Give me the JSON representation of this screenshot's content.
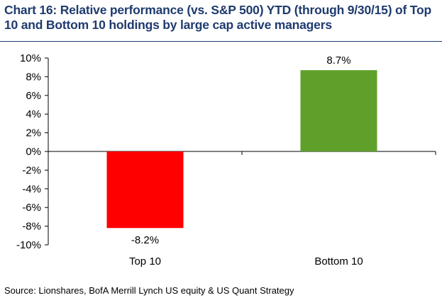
{
  "title": "Chart 16: Relative performance (vs. S&P 500) YTD (through 9/30/15) of Top 10 and Bottom 10 holdings by large cap active managers",
  "source": "Source: Lionshares, BofA Merrill Lynch US equity & US Quant Strategy",
  "colors": {
    "title": "#1f3b6e",
    "top10": "#ff0000",
    "bottom10": "#5fa02a"
  },
  "chart_data": {
    "type": "bar",
    "categories": [
      "Top 10",
      "Bottom 10"
    ],
    "values": [
      -8.2,
      8.7
    ],
    "value_labels": [
      "-8.2%",
      "8.7%"
    ],
    "bar_colors": [
      "#ff0000",
      "#5fa02a"
    ],
    "ylim": [
      -10,
      10
    ],
    "yticks": [
      10,
      8,
      6,
      4,
      2,
      0,
      -2,
      -4,
      -6,
      -8,
      -10
    ],
    "ytick_labels": [
      "10%",
      "8%",
      "6%",
      "4%",
      "2%",
      "0%",
      "-2%",
      "-4%",
      "-6%",
      "-8%",
      "-10%"
    ],
    "xlabel": "",
    "ylabel": "",
    "grid": false,
    "legend": "none"
  }
}
